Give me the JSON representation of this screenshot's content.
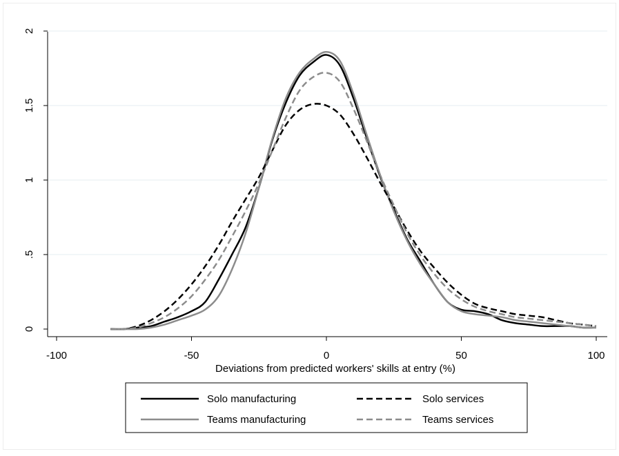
{
  "chart_data": {
    "type": "line",
    "title": "",
    "xlabel": "Deviations from predicted workers' skills at entry (%)",
    "ylabel": "",
    "xlim": [
      -100,
      100
    ],
    "ylim": [
      0,
      2
    ],
    "xticks": [
      -100,
      -50,
      0,
      50,
      100
    ],
    "xtick_labels": [
      "-100",
      "-50",
      "0",
      "50",
      "100"
    ],
    "yticks": [
      0,
      0.5,
      1,
      1.5,
      2
    ],
    "ytick_labels": [
      "0",
      ".5",
      "1",
      "1.5",
      "2"
    ],
    "grid": "horizontal",
    "legend_position": "bottom",
    "series": [
      {
        "name": "Solo manufacturing",
        "color": "#000000",
        "dash": "solid",
        "x": [
          -80,
          -75,
          -70,
          -65,
          -60,
          -55,
          -50,
          -45,
          -40,
          -35,
          -30,
          -25,
          -20,
          -15,
          -10,
          -5,
          0,
          5,
          10,
          15,
          20,
          25,
          30,
          35,
          40,
          45,
          50,
          55,
          60,
          65,
          70,
          75,
          80,
          85,
          90,
          95,
          100
        ],
        "y": [
          0.0,
          0.0,
          0.01,
          0.02,
          0.05,
          0.08,
          0.12,
          0.18,
          0.33,
          0.5,
          0.68,
          0.95,
          1.27,
          1.52,
          1.7,
          1.79,
          1.84,
          1.77,
          1.55,
          1.28,
          1.02,
          0.8,
          0.6,
          0.45,
          0.3,
          0.18,
          0.13,
          0.12,
          0.1,
          0.06,
          0.04,
          0.03,
          0.02,
          0.02,
          0.02,
          0.01,
          0.01
        ]
      },
      {
        "name": "Teams manufacturing",
        "color": "#8c8c8c",
        "dash": "solid",
        "x": [
          -80,
          -75,
          -70,
          -65,
          -60,
          -55,
          -50,
          -45,
          -40,
          -35,
          -30,
          -25,
          -20,
          -15,
          -10,
          -5,
          0,
          5,
          10,
          15,
          20,
          25,
          30,
          35,
          40,
          45,
          50,
          55,
          60,
          65,
          70,
          75,
          80,
          85,
          90,
          95,
          100
        ],
        "y": [
          0.0,
          0.0,
          0.0,
          0.01,
          0.03,
          0.06,
          0.09,
          0.13,
          0.22,
          0.4,
          0.64,
          0.95,
          1.28,
          1.55,
          1.72,
          1.81,
          1.86,
          1.8,
          1.58,
          1.3,
          1.03,
          0.79,
          0.59,
          0.43,
          0.3,
          0.18,
          0.12,
          0.1,
          0.09,
          0.08,
          0.06,
          0.05,
          0.04,
          0.03,
          0.02,
          0.01,
          0.01
        ]
      },
      {
        "name": "Solo services",
        "color": "#000000",
        "dash": "dashed",
        "x": [
          -80,
          -75,
          -70,
          -65,
          -60,
          -55,
          -50,
          -45,
          -40,
          -35,
          -30,
          -25,
          -20,
          -15,
          -10,
          -5,
          0,
          5,
          10,
          15,
          20,
          25,
          30,
          35,
          40,
          45,
          50,
          55,
          60,
          65,
          70,
          75,
          80,
          85,
          90,
          95,
          100
        ],
        "y": [
          0.0,
          0.0,
          0.02,
          0.06,
          0.12,
          0.2,
          0.3,
          0.42,
          0.56,
          0.72,
          0.87,
          1.02,
          1.2,
          1.37,
          1.47,
          1.51,
          1.5,
          1.44,
          1.31,
          1.15,
          0.98,
          0.82,
          0.66,
          0.52,
          0.41,
          0.31,
          0.23,
          0.17,
          0.14,
          0.12,
          0.1,
          0.09,
          0.08,
          0.06,
          0.04,
          0.03,
          0.02
        ]
      },
      {
        "name": "Teams services",
        "color": "#8c8c8c",
        "dash": "dashed",
        "x": [
          -80,
          -75,
          -70,
          -65,
          -60,
          -55,
          -50,
          -45,
          -40,
          -35,
          -30,
          -25,
          -20,
          -15,
          -10,
          -5,
          0,
          5,
          10,
          15,
          20,
          25,
          30,
          35,
          40,
          45,
          50,
          55,
          60,
          65,
          70,
          75,
          80,
          85,
          90,
          95,
          100
        ],
        "y": [
          0.0,
          0.0,
          0.01,
          0.04,
          0.08,
          0.14,
          0.22,
          0.33,
          0.46,
          0.62,
          0.79,
          0.98,
          1.2,
          1.42,
          1.6,
          1.69,
          1.72,
          1.66,
          1.48,
          1.26,
          1.03,
          0.83,
          0.64,
          0.49,
          0.37,
          0.27,
          0.2,
          0.15,
          0.12,
          0.1,
          0.08,
          0.07,
          0.06,
          0.05,
          0.04,
          0.03,
          0.02
        ]
      }
    ]
  }
}
